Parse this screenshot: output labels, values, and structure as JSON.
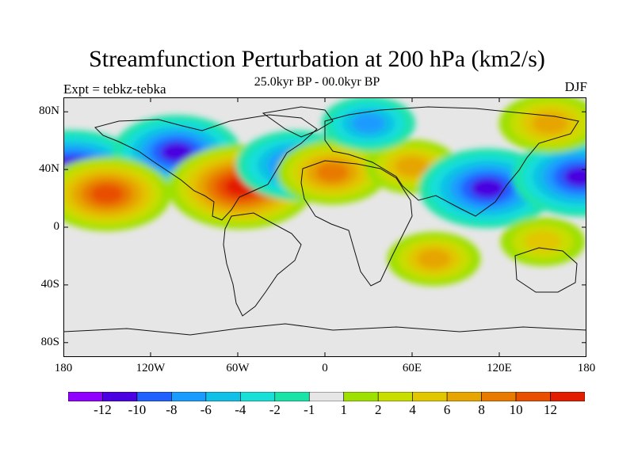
{
  "title": "Streamfunction Perturbation at 200 hPa (km2/s)",
  "subtitle": "25.0kyr BP - 00.0kyr BP",
  "left_label": "Expt = tebkz-tebka",
  "right_label": "DJF",
  "axes": {
    "lat_labels": [
      "80N",
      "40N",
      "0",
      "40S",
      "80S"
    ],
    "lat_values": [
      80,
      40,
      0,
      -40,
      -80
    ],
    "lon_labels": [
      "180",
      "120W",
      "60W",
      "0",
      "60E",
      "120E",
      "180"
    ],
    "lon_values": [
      -180,
      -120,
      -60,
      0,
      60,
      120,
      180
    ],
    "lat_range": [
      -90,
      90
    ],
    "lon_range": [
      -180,
      180
    ]
  },
  "colorbar": {
    "colors": [
      "#8f00ff",
      "#4a00e0",
      "#2060ff",
      "#1a9bff",
      "#10c0e6",
      "#19dfd9",
      "#1ae3a8",
      "#e6e6e6",
      "#9ee000",
      "#c8dd00",
      "#e1c600",
      "#e6a500",
      "#e87a00",
      "#e85000",
      "#e31d00"
    ],
    "tick_labels": [
      "-12",
      "-10",
      "-8",
      "-6",
      "-4",
      "-2",
      "-1",
      "1",
      "2",
      "4",
      "6",
      "8",
      "10",
      "12"
    ]
  },
  "chart_data": {
    "type": "heatmap",
    "title": "Streamfunction Perturbation at 200 hPa (km2/s)",
    "subtitle": "25.0kyr BP - 00.0kyr BP",
    "variable": "streamfunction perturbation",
    "units": "km2/s",
    "season": "DJF",
    "contour_levels": [
      -12,
      -10,
      -8,
      -6,
      -4,
      -2,
      -1,
      1,
      2,
      4,
      6,
      8,
      10,
      12
    ],
    "features": [
      {
        "lon": -174,
        "lat": 38,
        "value": -12
      },
      {
        "lon": -102,
        "lat": 52,
        "value": -10
      },
      {
        "lon": -150,
        "lat": 23,
        "value": 10
      },
      {
        "lon": -58,
        "lat": 28,
        "value": 12
      },
      {
        "lon": -20,
        "lat": 43,
        "value": -9
      },
      {
        "lon": 5,
        "lat": 38,
        "value": 8
      },
      {
        "lon": 60,
        "lat": 42,
        "value": 6
      },
      {
        "lon": 112,
        "lat": 27,
        "value": -11
      },
      {
        "lon": 176,
        "lat": 35,
        "value": -11
      },
      {
        "lon": 30,
        "lat": 72,
        "value": -6
      },
      {
        "lon": 155,
        "lat": 72,
        "value": 7
      },
      {
        "lon": 75,
        "lat": -22,
        "value": 6
      },
      {
        "lon": 150,
        "lat": -10,
        "value": 5
      }
    ]
  }
}
